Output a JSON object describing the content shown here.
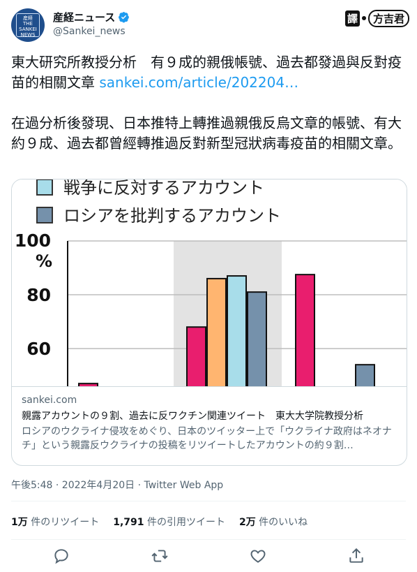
{
  "account": {
    "display_name": "産経ニュース",
    "handle": "@Sankei_news",
    "avatar_text": "産経 THE SANKEI NEWS"
  },
  "translate_badge": {
    "prefix": "譯",
    "name": "方吉君"
  },
  "tweet": {
    "line1": "東大研究所教授分析　有９成的親俄帳號、過去都發過與反對疫苗的相關文章 ",
    "link": "sankei.com/article/202204…",
    "para2": "在過分析後發現、日本推特上轉推過親俄反烏文章的帳號、有大約９成、過去都曾經轉推過反對新型冠狀病毒疫苗的相關文章。"
  },
  "card": {
    "domain": "sankei.com",
    "title": "親露アカウントの９割、過去に反ワクチン関連ツイート　東大大学院教授分析",
    "description": "ロシアのウクライナ侵攻をめぐり、日本のツイッター上で「ウクライナ政府はネオナチ」という親露反ウクライナの投稿をリツイートしたアカウントの約９割…"
  },
  "chart_data": {
    "type": "bar",
    "legend": [
      {
        "label": "戦争に反対するアカウント",
        "color": "#a8ddea"
      },
      {
        "label": "ロシアを批判するアカウント",
        "color": "#7591ab"
      }
    ],
    "y_ticks": [
      "100",
      "80",
      "60"
    ],
    "y_unit": "%",
    "ylim": [
      46,
      100
    ],
    "bars": [
      {
        "group": 0,
        "value": 47,
        "color": "#e91e6e"
      },
      {
        "group": 1,
        "value": 68,
        "color": "#e91e6e"
      },
      {
        "group": 1,
        "value": 86,
        "color": "#ffb570"
      },
      {
        "group": 1,
        "value": 87,
        "color": "#a8ddea"
      },
      {
        "group": 1,
        "value": 81,
        "color": "#7591ab"
      },
      {
        "group": 2,
        "value": 87.5,
        "color": "#e91e6e"
      },
      {
        "group": 2,
        "value": 54,
        "color": "#7591ab"
      }
    ],
    "highlight_group": 1,
    "grid": true
  },
  "meta": {
    "time": "午後5:48 · 2022年4月20日 · Twitter Web App"
  },
  "stats": {
    "retweets_count": "1万",
    "retweets_label": "件のリツイート",
    "quotes_count": "1,791",
    "quotes_label": "件の引用ツイート",
    "likes_count": "2万",
    "likes_label": "件のいいね"
  },
  "colors": {
    "accent": "#1d9bf0",
    "muted": "#536471"
  }
}
